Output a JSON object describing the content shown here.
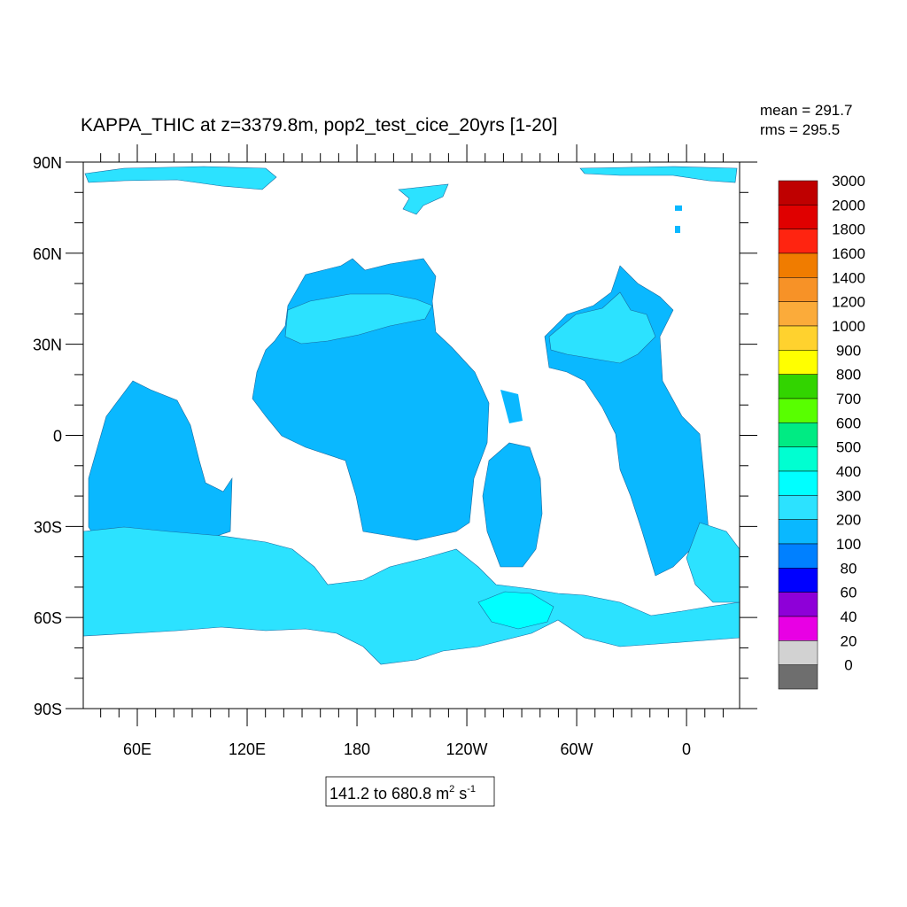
{
  "title": "KAPPA_THIC at z=3379.8m, pop2_test_cice_20yrs [1-20]",
  "stats": {
    "mean": "mean = 291.7",
    "rms": "rms = 295.5"
  },
  "range_label": {
    "text": "141.2 to 680.8 m",
    "sup1": "2",
    "mid": " s",
    "sup2": "-1"
  },
  "lat_labels": [
    "90N",
    "60N",
    "30N",
    "0",
    "30S",
    "60S",
    "90S"
  ],
  "lon_labels": [
    "60E",
    "120E",
    "180",
    "120W",
    "60W",
    "0"
  ],
  "colorbar": {
    "labels": [
      "3000",
      "2000",
      "1800",
      "1600",
      "1400",
      "1200",
      "1000",
      "900",
      "800",
      "700",
      "600",
      "500",
      "400",
      "300",
      "200",
      "100",
      "80",
      "60",
      "40",
      "20",
      "0"
    ],
    "colors": [
      "#bf0000",
      "#e00000",
      "#ff2410",
      "#f07c00",
      "#f79227",
      "#fbab3a",
      "#ffd22e",
      "#ffff00",
      "#32d400",
      "#58ff00",
      "#00eb83",
      "#00ffd1",
      "#00ffff",
      "#2ce2ff",
      "#0ab8ff",
      "#0080ff",
      "#0000ff",
      "#8e00d8",
      "#e800e4",
      "#d2d2d2",
      "#6e6e6e"
    ]
  },
  "map_colors": {
    "ocean_main": "#0ab8ff",
    "ocean_light": "#2ce2ff",
    "ocean_high": "#00ffff",
    "ocean_low": "#0080ff",
    "land": "#ffffff"
  }
}
